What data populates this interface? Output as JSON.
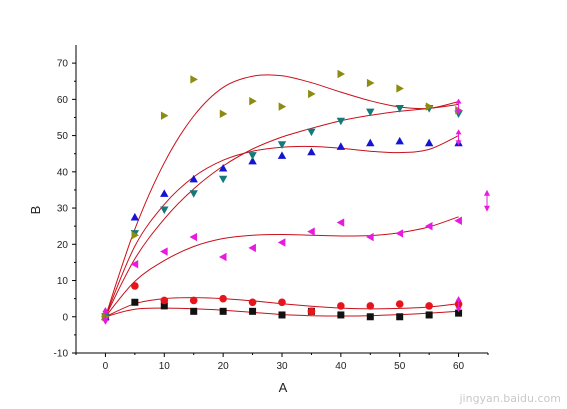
{
  "chart_data": {
    "type": "scatter",
    "xlabel": "A",
    "ylabel": "B",
    "xlim": [
      -5,
      65
    ],
    "ylim": [
      -10,
      75
    ],
    "xticks": [
      0,
      10,
      20,
      30,
      40,
      50,
      60
    ],
    "yticks": [
      -10,
      0,
      10,
      20,
      30,
      40,
      50,
      60,
      70
    ],
    "grid": false,
    "fit_color": "#c8101a",
    "series": [
      {
        "marker": "square",
        "color": "#111111",
        "x": [
          0,
          5,
          10,
          15,
          20,
          25,
          30,
          35,
          40,
          45,
          50,
          55,
          60
        ],
        "y": [
          0,
          4,
          3,
          1.5,
          1.5,
          1.5,
          0.5,
          1.5,
          0.5,
          0,
          0,
          0.5,
          1
        ],
        "fit": [
          0,
          2.1,
          2.4,
          2.2,
          1.8,
          1.2,
          0.6,
          0.3,
          0.2,
          0.3,
          0.6,
          1.0,
          1.5
        ]
      },
      {
        "marker": "circle",
        "color": "#e8141c",
        "x": [
          0,
          5,
          10,
          15,
          20,
          25,
          30,
          35,
          40,
          45,
          50,
          55,
          60
        ],
        "y": [
          0,
          8.5,
          4.5,
          4.5,
          5,
          4,
          4,
          1.5,
          3,
          3,
          3.5,
          3,
          3.5
        ],
        "fit": [
          0,
          3.6,
          5.0,
          5.3,
          5.0,
          4.4,
          3.6,
          2.9,
          2.4,
          2.2,
          2.3,
          2.7,
          3.6
        ]
      },
      {
        "marker": "triangle-left",
        "color": "#e81ae0",
        "x": [
          0,
          5,
          10,
          15,
          20,
          25,
          30,
          35,
          40,
          45,
          50,
          55,
          60
        ],
        "y": [
          0,
          14.5,
          18,
          22,
          16.5,
          19,
          20.5,
          23.5,
          26,
          22,
          23,
          25,
          26.5
        ],
        "fit": [
          0,
          9.8,
          15.5,
          19.4,
          21.6,
          22.5,
          22.7,
          22.5,
          22.3,
          22.4,
          23.2,
          24.8,
          27.6
        ]
      },
      {
        "marker": "triangle-up",
        "color": "#1414d2",
        "x": [
          0,
          5,
          10,
          15,
          20,
          25,
          30,
          35,
          40,
          45,
          50,
          55,
          60
        ],
        "y": [
          0,
          27.5,
          34,
          38,
          41,
          43,
          44.5,
          45.5,
          47,
          48,
          48.5,
          48,
          48
        ],
        "fit": [
          0,
          19.5,
          31.0,
          38.6,
          43.2,
          45.7,
          46.8,
          47.0,
          46.5,
          45.7,
          45.3,
          46.2,
          50.0
        ]
      },
      {
        "marker": "triangle-down",
        "color": "#127a7a",
        "x": [
          0,
          5,
          10,
          15,
          20,
          25,
          30,
          35,
          40,
          45,
          50,
          55,
          60
        ],
        "y": [
          0,
          23,
          29.5,
          34,
          38,
          44.5,
          47.5,
          51,
          54,
          56.5,
          57.5,
          57.5,
          56
        ],
        "fit": [
          0,
          16.0,
          27.0,
          35.3,
          41.6,
          46.3,
          49.6,
          52.0,
          54.1,
          55.6,
          56.7,
          57.5,
          58.6
        ]
      },
      {
        "marker": "triangle-right",
        "color": "#8c8c12",
        "x": [
          0,
          5,
          10,
          15,
          20,
          25,
          30,
          35,
          40,
          45,
          50,
          55,
          60
        ],
        "y": [
          0,
          22.5,
          55.5,
          65.5,
          56,
          59.5,
          58,
          61.5,
          67,
          64.5,
          63,
          58,
          57
        ],
        "fit": [
          0,
          24.2,
          42.5,
          55.4,
          63.3,
          66.4,
          66.5,
          64.6,
          62.0,
          59.6,
          57.9,
          57.5,
          59.4
        ]
      }
    ]
  },
  "watermark": "jingyan.baidu.com"
}
